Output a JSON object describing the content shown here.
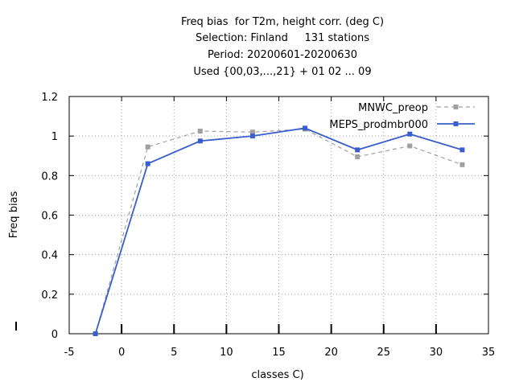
{
  "chart_data": {
    "type": "line",
    "title_lines": [
      "Freq bias  for T2m, height corr. (deg C)",
      "Selection: Finland     131 stations",
      "Period: 20200601-20200630",
      "Used {00,03,...,21} + 01 02 ... 09"
    ],
    "xlabel": "classes C)",
    "ylabel": "Freq bias",
    "xlim": [
      -5,
      35
    ],
    "ylim": [
      0,
      1.2
    ],
    "xticks": [
      -5,
      0,
      5,
      10,
      15,
      20,
      25,
      30,
      35
    ],
    "yticks": [
      0,
      0.2,
      0.4,
      0.6,
      0.8,
      1,
      1.2
    ],
    "x_tick_labels": [
      "-5",
      "0",
      "5",
      "10",
      "15",
      "20",
      "25",
      "30",
      "35"
    ],
    "y_tick_labels": [
      "0",
      "0.2",
      "0.4",
      "0.6",
      "0.8",
      "1",
      "1.2"
    ],
    "grid": true,
    "legend_position": "top-right",
    "x": [
      -2.5,
      2.5,
      7.5,
      12.5,
      17.5,
      22.5,
      27.5,
      32.5
    ],
    "series": [
      {
        "name": "MNWC_preop",
        "color": "#a0a0a0",
        "dashed": true,
        "values": [
          0.0,
          0.945,
          1.025,
          1.02,
          1.035,
          0.895,
          0.95,
          0.855
        ]
      },
      {
        "name": "MEPS_prodmbr000",
        "color": "#3a5fcd",
        "dashed": false,
        "values": [
          0.0,
          0.86,
          0.975,
          1.0,
          1.04,
          0.93,
          1.01,
          0.93
        ]
      }
    ]
  }
}
